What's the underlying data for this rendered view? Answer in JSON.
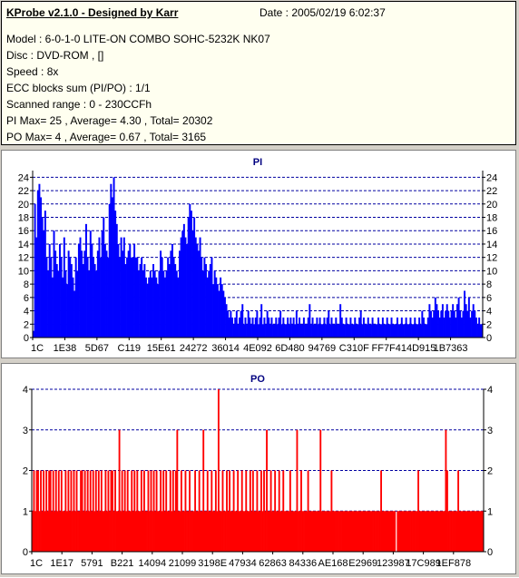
{
  "header": {
    "title": "KProbe v2.1.0 - Designed by Karr",
    "date": "Date : 2005/02/19 6:02:37",
    "lines": [
      "Model : 6-0-1-0 LITE-ON COMBO SOHC-5232K NK07",
      "Disc : DVD-ROM ,  []",
      "Speed : 8x",
      "ECC blocks sum (PI/PO) : 1/1",
      "Scanned range : 0 - 230CCFh",
      "PI Max= 25 , Average= 4.30 , Total= 20302",
      "PO Max= 4 , Average= 0.67 , Total= 3165"
    ]
  },
  "colors": {
    "pi_bars": "#0000ff",
    "po_bars": "#ff0000",
    "title_text": "#000080",
    "grid": "#0000a0",
    "panel_bg": "#d4d0c8"
  },
  "chart_data": [
    {
      "type": "bar",
      "title": "PI",
      "ylim": [
        0,
        25
      ],
      "yticks": [
        0,
        2,
        4,
        6,
        8,
        10,
        12,
        14,
        16,
        18,
        20,
        22,
        24
      ],
      "xticks": [
        "1C",
        "1E38",
        "5D67",
        "C119",
        "15E61",
        "24272",
        "36014",
        "4E092",
        "6D480",
        "94769",
        "C310F",
        "FF7F4",
        "14D915",
        "1B7363"
      ],
      "grid": true,
      "series": [
        {
          "values": [
            1,
            20,
            15,
            22,
            23,
            21,
            18,
            16,
            19,
            12,
            10,
            14,
            12,
            9,
            16,
            13,
            11,
            10,
            14,
            12,
            9,
            15,
            10,
            8,
            13,
            12,
            11,
            9,
            7,
            12,
            10,
            14,
            15,
            13,
            11,
            13,
            17,
            12,
            10,
            16,
            14,
            12,
            11,
            10,
            13,
            15,
            12,
            16,
            18,
            14,
            13,
            12,
            20,
            23,
            21,
            24,
            19,
            17,
            14,
            12,
            15,
            13,
            15,
            11,
            12,
            13,
            14,
            12,
            12,
            14,
            12,
            12,
            10,
            11,
            12,
            10,
            11,
            9,
            8,
            9,
            10,
            9,
            11,
            10,
            9,
            8,
            10,
            13,
            12,
            10,
            9,
            10,
            12,
            11,
            13,
            14,
            12,
            11,
            10,
            9,
            13,
            15,
            16,
            17,
            15,
            14,
            18,
            20,
            19,
            16,
            18,
            15,
            14,
            13,
            15,
            12,
            10,
            12,
            11,
            9,
            10,
            11,
            12,
            8,
            10,
            9,
            8,
            7,
            9,
            8,
            7,
            6,
            5,
            4,
            3,
            4,
            3,
            2,
            3,
            4,
            2,
            3,
            4,
            5,
            2,
            3,
            2,
            4,
            3,
            2,
            3,
            2,
            3,
            4,
            2,
            3,
            5,
            2,
            3,
            2,
            4,
            3,
            2,
            3,
            2,
            2,
            3,
            2,
            3,
            4,
            2,
            3,
            2,
            2,
            3,
            2,
            3,
            2,
            3,
            2,
            4,
            2,
            3,
            2,
            2,
            3,
            2,
            2,
            3,
            5,
            2,
            3,
            2,
            2,
            3,
            2,
            3,
            2,
            2,
            3,
            2,
            3,
            4,
            2,
            3,
            2,
            2,
            3,
            2,
            2,
            5,
            3,
            2,
            2,
            3,
            2,
            2,
            3,
            2,
            2,
            3,
            2,
            2,
            3,
            4,
            2,
            3,
            2,
            2,
            3,
            2,
            2,
            3,
            2,
            2,
            2,
            3,
            2,
            2,
            3,
            2,
            2,
            3,
            2,
            2,
            3,
            2,
            2,
            2,
            3,
            2,
            2,
            3,
            2,
            2,
            3,
            2,
            2,
            3,
            2,
            2,
            3,
            2,
            2,
            3,
            2,
            4,
            3,
            2,
            2,
            3,
            5,
            4,
            3,
            4,
            6,
            5,
            4,
            3,
            4,
            5,
            3,
            4,
            5,
            4,
            3,
            4,
            5,
            4,
            3,
            5,
            6,
            4,
            3,
            4,
            7,
            5,
            4,
            6,
            3,
            4,
            5,
            4,
            3,
            2,
            3,
            2,
            2
          ]
        }
      ]
    },
    {
      "type": "bar",
      "title": "PO",
      "ylim": [
        0,
        4
      ],
      "yticks": [
        0,
        1,
        2,
        3,
        4
      ],
      "xticks": [
        "1C",
        "1E17",
        "5791",
        "B221",
        "14094",
        "21099",
        "3198E",
        "47934",
        "62863",
        "84336",
        "AE168",
        "E2969",
        "123987",
        "17C989",
        "1EF878"
      ],
      "grid": true,
      "series": [
        {
          "values": [
            1,
            2,
            1,
            2,
            2,
            1,
            2,
            1,
            2,
            1,
            2,
            1,
            2,
            2,
            1,
            2,
            1,
            2,
            1,
            2,
            1,
            2,
            1,
            1,
            2,
            1,
            2,
            1,
            2,
            1,
            2,
            1,
            2,
            1,
            1,
            2,
            2,
            1,
            2,
            1,
            2,
            1,
            2,
            1,
            2,
            1,
            2,
            1,
            2,
            1,
            2,
            1,
            1,
            2,
            1,
            2,
            1,
            2,
            2,
            1,
            2,
            1,
            1,
            3,
            1,
            2,
            1,
            2,
            1,
            2,
            1,
            1,
            2,
            1,
            2,
            1,
            2,
            1,
            1,
            2,
            1,
            2,
            1,
            1,
            2,
            1,
            2,
            1,
            2,
            1,
            2,
            1,
            1,
            2,
            1,
            2,
            1,
            2,
            1,
            1,
            2,
            1,
            2,
            1,
            2,
            3,
            1,
            1,
            2,
            1,
            1,
            2,
            1,
            1,
            2,
            1,
            1,
            1,
            2,
            1,
            1,
            2,
            1,
            1,
            3,
            1,
            1,
            2,
            1,
            1,
            2,
            1,
            1,
            2,
            1,
            4,
            1,
            1,
            2,
            1,
            1,
            2,
            1,
            2,
            1,
            1,
            2,
            1,
            1,
            2,
            1,
            1,
            2,
            1,
            1,
            2,
            1,
            1,
            2,
            1,
            2,
            1,
            1,
            2,
            1,
            1,
            2,
            1,
            2,
            1,
            3,
            1,
            1,
            2,
            1,
            1,
            2,
            1,
            1,
            2,
            1,
            1,
            2,
            1,
            1,
            1,
            1,
            2,
            1,
            1,
            1,
            1,
            3,
            1,
            1,
            2,
            1,
            1,
            1,
            1,
            2,
            1,
            1,
            1,
            1,
            1,
            1,
            1,
            1,
            3,
            1,
            1,
            1,
            1,
            1,
            1,
            1,
            2,
            1,
            1,
            1,
            1,
            1,
            1,
            1,
            1,
            1,
            1,
            1,
            1,
            1,
            1,
            1,
            1,
            1,
            1,
            1,
            1,
            1,
            1,
            1,
            1,
            1,
            1,
            1,
            1,
            1,
            1,
            1,
            1,
            1,
            1,
            1,
            2,
            1,
            1,
            1,
            1,
            1,
            1,
            1,
            1,
            1,
            1,
            0,
            1,
            1,
            1,
            1,
            1,
            1,
            1,
            1,
            1,
            1,
            1,
            1,
            1,
            1,
            1,
            2,
            1,
            1,
            1,
            1,
            1,
            1,
            1,
            1,
            1,
            1,
            1,
            1,
            1,
            1,
            1,
            1,
            1,
            1,
            1,
            3,
            2,
            1,
            1,
            1,
            1,
            1,
            1,
            1,
            2,
            1,
            1,
            1,
            1,
            1,
            1,
            1,
            1,
            1,
            1,
            1,
            1,
            1,
            1,
            1,
            1,
            1,
            1
          ]
        }
      ]
    }
  ]
}
